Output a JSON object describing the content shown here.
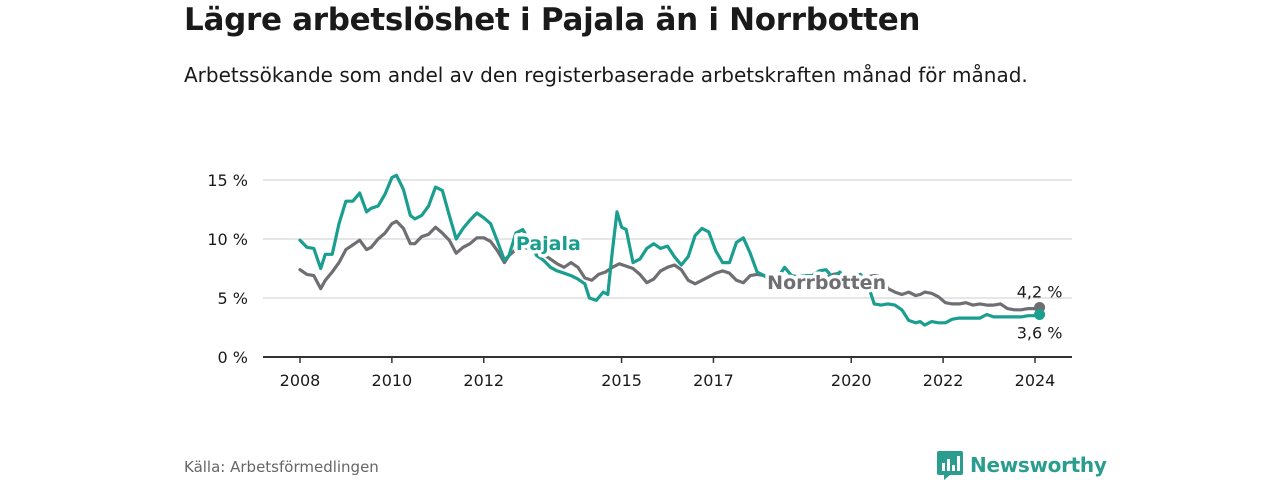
{
  "header": {
    "title": "Lägre arbetslöshet i Pajala än i Norrbotten",
    "subtitle": "Arbetssökande som andel av den registerbaserade arbetskraften månad för månad."
  },
  "footer": {
    "source": "Källa: Arbetsförmedlingen",
    "brand": "Newsworthy"
  },
  "colors": {
    "pajala": "#1a9e8f",
    "norrbotten": "#6e6e73",
    "grid": "#d6d6d6",
    "axis": "#333333",
    "brand": "#2a9d8f"
  },
  "chart_data": {
    "type": "line",
    "title": "Lägre arbetslöshet i Pajala än i Norrbotten",
    "xlabel": "",
    "ylabel": "",
    "xlim": [
      2007.6,
      2024.8
    ],
    "ylim": [
      0,
      15
    ],
    "yticks": [
      0,
      5,
      10,
      15
    ],
    "ytick_labels": [
      "0 %",
      "5 %",
      "10 %",
      "15 %"
    ],
    "xticks": [
      2008,
      2010,
      2012,
      2015,
      2017,
      2020,
      2022,
      2024
    ],
    "xtick_labels": [
      "2008",
      "2010",
      "2012",
      "2015",
      "2017",
      "2020",
      "2022",
      "2024"
    ],
    "grid": true,
    "series": [
      {
        "name": "Pajala",
        "label": "Pajala",
        "end_label": "3,6 %",
        "end_value": 3.6,
        "x": [
          2008.0,
          2008.15,
          2008.3,
          2008.45,
          2008.55,
          2008.7,
          2008.85,
          2009.0,
          2009.15,
          2009.3,
          2009.45,
          2009.55,
          2009.7,
          2009.85,
          2010.0,
          2010.1,
          2010.25,
          2010.4,
          2010.5,
          2010.65,
          2010.8,
          2010.95,
          2011.1,
          2011.25,
          2011.4,
          2011.55,
          2011.7,
          2011.85,
          2012.0,
          2012.15,
          2012.3,
          2012.45,
          2012.55,
          2012.7,
          2012.85,
          2013.0,
          2013.15,
          2013.3,
          2013.45,
          2013.6,
          2013.75,
          2013.9,
          2014.05,
          2014.2,
          2014.3,
          2014.45,
          2014.6,
          2014.7,
          2014.8,
          2014.9,
          2015.0,
          2015.1,
          2015.25,
          2015.4,
          2015.55,
          2015.7,
          2015.85,
          2016.0,
          2016.15,
          2016.3,
          2016.45,
          2016.6,
          2016.75,
          2016.9,
          2017.05,
          2017.2,
          2017.35,
          2017.5,
          2017.65,
          2017.8,
          2017.95,
          2018.1,
          2018.25,
          2018.4,
          2018.55,
          2018.7,
          2018.85,
          2019.0,
          2019.15,
          2019.3,
          2019.45,
          2019.6,
          2019.75,
          2019.9,
          2020.05,
          2020.2,
          2020.35,
          2020.5,
          2020.65,
          2020.8,
          2020.95,
          2021.1,
          2021.25,
          2021.4,
          2021.5,
          2021.6,
          2021.75,
          2021.9,
          2022.05,
          2022.2,
          2022.35,
          2022.5,
          2022.65,
          2022.8,
          2022.95,
          2023.1,
          2023.25,
          2023.4,
          2023.55,
          2023.7,
          2023.85,
          2024.0,
          2024.1
        ],
        "values": [
          9.9,
          9.3,
          9.2,
          7.5,
          8.7,
          8.7,
          11.3,
          13.2,
          13.2,
          13.9,
          12.3,
          12.6,
          12.8,
          13.8,
          15.2,
          15.4,
          14.2,
          12.0,
          11.7,
          12.0,
          12.8,
          14.4,
          14.1,
          12.0,
          10.0,
          10.9,
          11.6,
          12.2,
          11.8,
          11.3,
          9.8,
          8.2,
          8.6,
          10.5,
          10.8,
          9.8,
          8.6,
          8.2,
          7.6,
          7.3,
          7.1,
          6.9,
          6.6,
          6.2,
          5.0,
          4.8,
          5.5,
          5.3,
          9.0,
          12.3,
          11.0,
          10.8,
          8.0,
          8.3,
          9.2,
          9.6,
          9.2,
          9.4,
          8.5,
          7.8,
          8.5,
          10.3,
          10.9,
          10.6,
          9.0,
          8.0,
          8.0,
          9.7,
          10.1,
          8.8,
          7.2,
          6.9,
          6.5,
          6.7,
          7.6,
          6.9,
          6.8,
          6.9,
          6.9,
          7.3,
          7.4,
          6.7,
          7.2,
          6.6,
          6.8,
          7.0,
          6.3,
          4.5,
          4.4,
          4.5,
          4.4,
          4.0,
          3.1,
          2.9,
          3.0,
          2.7,
          3.0,
          2.9,
          2.9,
          3.2,
          3.3,
          3.3,
          3.3,
          3.3,
          3.6,
          3.4,
          3.4,
          3.4,
          3.4,
          3.4,
          3.5,
          3.5,
          3.6
        ]
      },
      {
        "name": "Norrbotten",
        "label": "Norrbotten",
        "end_label": "4,2 %",
        "end_value": 4.2,
        "x": [
          2008.0,
          2008.15,
          2008.3,
          2008.45,
          2008.55,
          2008.7,
          2008.85,
          2009.0,
          2009.15,
          2009.3,
          2009.45,
          2009.55,
          2009.7,
          2009.85,
          2010.0,
          2010.1,
          2010.25,
          2010.4,
          2010.5,
          2010.65,
          2010.8,
          2010.95,
          2011.1,
          2011.25,
          2011.4,
          2011.55,
          2011.7,
          2011.85,
          2012.0,
          2012.15,
          2012.3,
          2012.45,
          2012.55,
          2012.7,
          2012.85,
          2013.0,
          2013.15,
          2013.3,
          2013.45,
          2013.6,
          2013.75,
          2013.9,
          2014.05,
          2014.2,
          2014.35,
          2014.5,
          2014.65,
          2014.8,
          2014.95,
          2015.1,
          2015.25,
          2015.4,
          2015.55,
          2015.7,
          2015.85,
          2016.0,
          2016.15,
          2016.3,
          2016.45,
          2016.6,
          2016.75,
          2016.9,
          2017.05,
          2017.2,
          2017.35,
          2017.5,
          2017.65,
          2017.8,
          2017.95,
          2018.1,
          2018.25,
          2018.4,
          2018.55,
          2018.7,
          2018.85,
          2019.0,
          2019.15,
          2019.3,
          2019.45,
          2019.6,
          2019.75,
          2019.9,
          2020.05,
          2020.2,
          2020.35,
          2020.5,
          2020.65,
          2020.8,
          2020.95,
          2021.1,
          2021.25,
          2021.4,
          2021.5,
          2021.6,
          2021.75,
          2021.9,
          2022.05,
          2022.2,
          2022.35,
          2022.5,
          2022.65,
          2022.8,
          2022.95,
          2023.1,
          2023.25,
          2023.4,
          2023.55,
          2023.7,
          2023.85,
          2024.0,
          2024.1
        ],
        "values": [
          7.4,
          7.0,
          6.9,
          5.8,
          6.5,
          7.2,
          8.0,
          9.1,
          9.5,
          9.9,
          9.1,
          9.3,
          10.0,
          10.5,
          11.3,
          11.5,
          10.9,
          9.6,
          9.6,
          10.2,
          10.4,
          11.0,
          10.5,
          9.9,
          8.8,
          9.3,
          9.6,
          10.1,
          10.1,
          9.8,
          9.0,
          8.0,
          8.6,
          9.1,
          9.4,
          9.1,
          8.8,
          8.7,
          8.3,
          7.9,
          7.6,
          8.0,
          7.6,
          6.7,
          6.5,
          7.0,
          7.2,
          7.6,
          7.9,
          7.7,
          7.5,
          7.0,
          6.3,
          6.6,
          7.3,
          7.6,
          7.8,
          7.4,
          6.5,
          6.2,
          6.5,
          6.8,
          7.1,
          7.3,
          7.1,
          6.5,
          6.3,
          6.9,
          7.0,
          6.9,
          6.5,
          6.4,
          6.6,
          6.7,
          6.8,
          6.6,
          6.8,
          6.9,
          6.7,
          7.0,
          7.1,
          6.5,
          6.2,
          6.6,
          6.8,
          6.9,
          6.8,
          5.8,
          5.5,
          5.3,
          5.5,
          5.2,
          5.3,
          5.5,
          5.4,
          5.1,
          4.6,
          4.5,
          4.5,
          4.6,
          4.4,
          4.5,
          4.4,
          4.4,
          4.5,
          4.1,
          4.0,
          4.0,
          4.1,
          4.1,
          4.2
        ]
      }
    ],
    "annotations": [
      {
        "text": "Pajala",
        "series": "Pajala"
      },
      {
        "text": "Norrbotten",
        "series": "Norrbotten"
      }
    ]
  }
}
